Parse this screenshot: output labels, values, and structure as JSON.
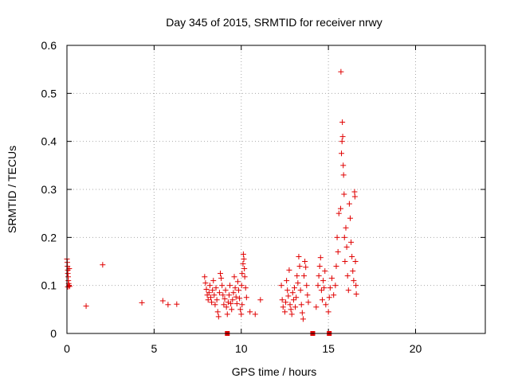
{
  "chart_data": {
    "type": "scatter",
    "title": "Day 345 of 2015, SRMTID for receiver nrwy",
    "xlabel": "GPS time / hours",
    "ylabel": "SRMTID / TECUs",
    "xlim": [
      0,
      24
    ],
    "ylim": [
      0,
      0.6
    ],
    "xticks": [
      0,
      5,
      10,
      15,
      20
    ],
    "xtick_labels": [
      "0",
      "5",
      "10",
      "15",
      "20"
    ],
    "yticks": [
      0,
      0.1,
      0.2,
      0.3,
      0.4,
      0.5,
      0.6
    ],
    "ytick_labels": [
      "0",
      "0.1",
      "0.2",
      "0.3",
      "0.4",
      "0.5",
      "0.6"
    ],
    "grid": true,
    "marker": "+",
    "color": "#e00000",
    "series": [
      {
        "points": [
          [
            0.0,
            0.155
          ],
          [
            0.02,
            0.148
          ],
          [
            0.03,
            0.14
          ],
          [
            0.05,
            0.132
          ],
          [
            0.05,
            0.125
          ],
          [
            0.07,
            0.118
          ],
          [
            0.08,
            0.11
          ],
          [
            0.1,
            0.104
          ],
          [
            0.12,
            0.1
          ],
          [
            0.13,
            0.135
          ],
          [
            0.15,
            0.098
          ],
          [
            0.05,
            0.097
          ],
          [
            1.1,
            0.057
          ],
          [
            2.05,
            0.143
          ],
          [
            4.3,
            0.064
          ],
          [
            5.5,
            0.068
          ],
          [
            5.8,
            0.06
          ],
          [
            6.3,
            0.061
          ],
          [
            7.9,
            0.118
          ],
          [
            7.95,
            0.105
          ],
          [
            8.0,
            0.092
          ],
          [
            8.05,
            0.08
          ],
          [
            8.1,
            0.07
          ],
          [
            8.15,
            0.085
          ],
          [
            8.2,
            0.1
          ],
          [
            8.25,
            0.075
          ],
          [
            8.3,
            0.065
          ],
          [
            8.35,
            0.09
          ],
          [
            8.4,
            0.11
          ],
          [
            8.45,
            0.08
          ],
          [
            8.5,
            0.06
          ],
          [
            8.55,
            0.095
          ],
          [
            8.6,
            0.07
          ],
          [
            8.65,
            0.045
          ],
          [
            8.7,
            0.035
          ],
          [
            8.75,
            0.085
          ],
          [
            8.8,
            0.125
          ],
          [
            8.85,
            0.115
          ],
          [
            8.9,
            0.1
          ],
          [
            8.95,
            0.08
          ],
          [
            9.0,
            0.06
          ],
          [
            9.05,
            0.072
          ],
          [
            9.1,
            0.09
          ],
          [
            9.15,
            0.055
          ],
          [
            9.2,
            0.04
          ],
          [
            9.25,
            0.065
          ],
          [
            9.3,
            0.08
          ],
          [
            9.35,
            0.1
          ],
          [
            9.4,
            0.062
          ],
          [
            9.45,
            0.05
          ],
          [
            9.5,
            0.07
          ],
          [
            9.55,
            0.085
          ],
          [
            9.6,
            0.118
          ],
          [
            9.65,
            0.095
          ],
          [
            9.7,
            0.076
          ],
          [
            9.75,
            0.062
          ],
          [
            9.8,
            0.108
          ],
          [
            9.85,
            0.09
          ],
          [
            9.9,
            0.073
          ],
          [
            9.95,
            0.05
          ],
          [
            10.0,
            0.04
          ],
          [
            10.02,
            0.1
          ],
          [
            10.05,
            0.125
          ],
          [
            10.1,
            0.145
          ],
          [
            10.12,
            0.165
          ],
          [
            10.15,
            0.155
          ],
          [
            10.18,
            0.135
          ],
          [
            10.2,
            0.118
          ],
          [
            10.25,
            0.095
          ],
          [
            10.3,
            0.075
          ],
          [
            10.05,
            0.06
          ],
          [
            10.5,
            0.045
          ],
          [
            10.8,
            0.04
          ],
          [
            11.1,
            0.07
          ],
          [
            12.3,
            0.1
          ],
          [
            12.35,
            0.07
          ],
          [
            12.4,
            0.055
          ],
          [
            12.5,
            0.045
          ],
          [
            12.55,
            0.065
          ],
          [
            12.6,
            0.11
          ],
          [
            12.65,
            0.09
          ],
          [
            12.7,
            0.078
          ],
          [
            12.75,
            0.132
          ],
          [
            12.8,
            0.06
          ],
          [
            12.85,
            0.05
          ],
          [
            12.9,
            0.04
          ],
          [
            12.95,
            0.085
          ],
          [
            13.0,
            0.07
          ],
          [
            13.05,
            0.095
          ],
          [
            13.1,
            0.055
          ],
          [
            13.15,
            0.075
          ],
          [
            13.2,
            0.12
          ],
          [
            13.25,
            0.105
          ],
          [
            13.3,
            0.16
          ],
          [
            13.35,
            0.14
          ],
          [
            13.4,
            0.09
          ],
          [
            13.45,
            0.06
          ],
          [
            13.5,
            0.043
          ],
          [
            13.55,
            0.03
          ],
          [
            13.6,
            0.12
          ],
          [
            13.65,
            0.15
          ],
          [
            13.7,
            0.138
          ],
          [
            13.75,
            0.1
          ],
          [
            13.8,
            0.08
          ],
          [
            13.85,
            0.065
          ],
          [
            14.3,
            0.055
          ],
          [
            14.4,
            0.1
          ],
          [
            14.45,
            0.12
          ],
          [
            14.5,
            0.14
          ],
          [
            14.55,
            0.158
          ],
          [
            14.6,
            0.09
          ],
          [
            14.65,
            0.07
          ],
          [
            14.7,
            0.11
          ],
          [
            14.75,
            0.095
          ],
          [
            14.8,
            0.13
          ],
          [
            14.85,
            0.06
          ],
          [
            15.0,
            0.045
          ],
          [
            15.05,
            0.075
          ],
          [
            15.1,
            0.095
          ],
          [
            15.2,
            0.115
          ],
          [
            15.3,
            0.08
          ],
          [
            15.4,
            0.1
          ],
          [
            15.45,
            0.14
          ],
          [
            15.5,
            0.2
          ],
          [
            15.55,
            0.17
          ],
          [
            15.6,
            0.25
          ],
          [
            15.7,
            0.26
          ],
          [
            15.72,
            0.545
          ],
          [
            15.75,
            0.375
          ],
          [
            15.78,
            0.4
          ],
          [
            15.8,
            0.44
          ],
          [
            15.82,
            0.41
          ],
          [
            15.85,
            0.35
          ],
          [
            15.87,
            0.33
          ],
          [
            15.9,
            0.29
          ],
          [
            15.92,
            0.2
          ],
          [
            15.95,
            0.15
          ],
          [
            16.0,
            0.22
          ],
          [
            16.05,
            0.18
          ],
          [
            16.1,
            0.12
          ],
          [
            16.15,
            0.09
          ],
          [
            16.2,
            0.27
          ],
          [
            16.25,
            0.24
          ],
          [
            16.3,
            0.19
          ],
          [
            16.35,
            0.16
          ],
          [
            16.4,
            0.13
          ],
          [
            16.45,
            0.11
          ],
          [
            16.5,
            0.295
          ],
          [
            16.52,
            0.285
          ],
          [
            16.55,
            0.15
          ],
          [
            16.58,
            0.1
          ],
          [
            16.6,
            0.082
          ]
        ]
      }
    ],
    "baseline_markers_x": [
      9.2,
      14.1,
      15.05
    ]
  }
}
